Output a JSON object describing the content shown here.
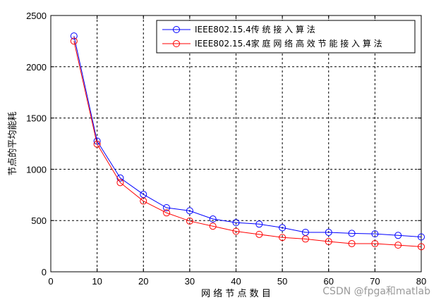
{
  "chart_data": {
    "type": "line",
    "title": "",
    "xlabel": "网 络 节 点 数 目",
    "ylabel": "节点的平均能耗",
    "xlim": [
      0,
      80
    ],
    "ylim": [
      0,
      2500
    ],
    "xticks": [
      0,
      10,
      20,
      30,
      40,
      50,
      60,
      70,
      80
    ],
    "yticks": [
      0,
      500,
      1000,
      1500,
      2000,
      2500
    ],
    "grid": true,
    "legend_position": "top-right",
    "x": [
      5,
      10,
      15,
      20,
      25,
      30,
      35,
      40,
      45,
      50,
      55,
      60,
      65,
      70,
      75,
      80
    ],
    "series": [
      {
        "name": "IEEE802.15.4传 统 接 入 算 法",
        "color": "#0000ff",
        "marker": "circle",
        "values": [
          2300,
          1275,
          915,
          755,
          625,
          595,
          515,
          480,
          465,
          430,
          385,
          385,
          375,
          370,
          355,
          340
        ]
      },
      {
        "name": "IEEE802.15.4家 庭 网 络 高 效 节 能 接 入 算 法",
        "color": "#ff0000",
        "marker": "circle",
        "values": [
          2250,
          1245,
          870,
          690,
          575,
          495,
          445,
          395,
          365,
          335,
          320,
          295,
          275,
          275,
          260,
          245
        ]
      }
    ]
  },
  "watermark": "CSDN @fpga和matlab"
}
